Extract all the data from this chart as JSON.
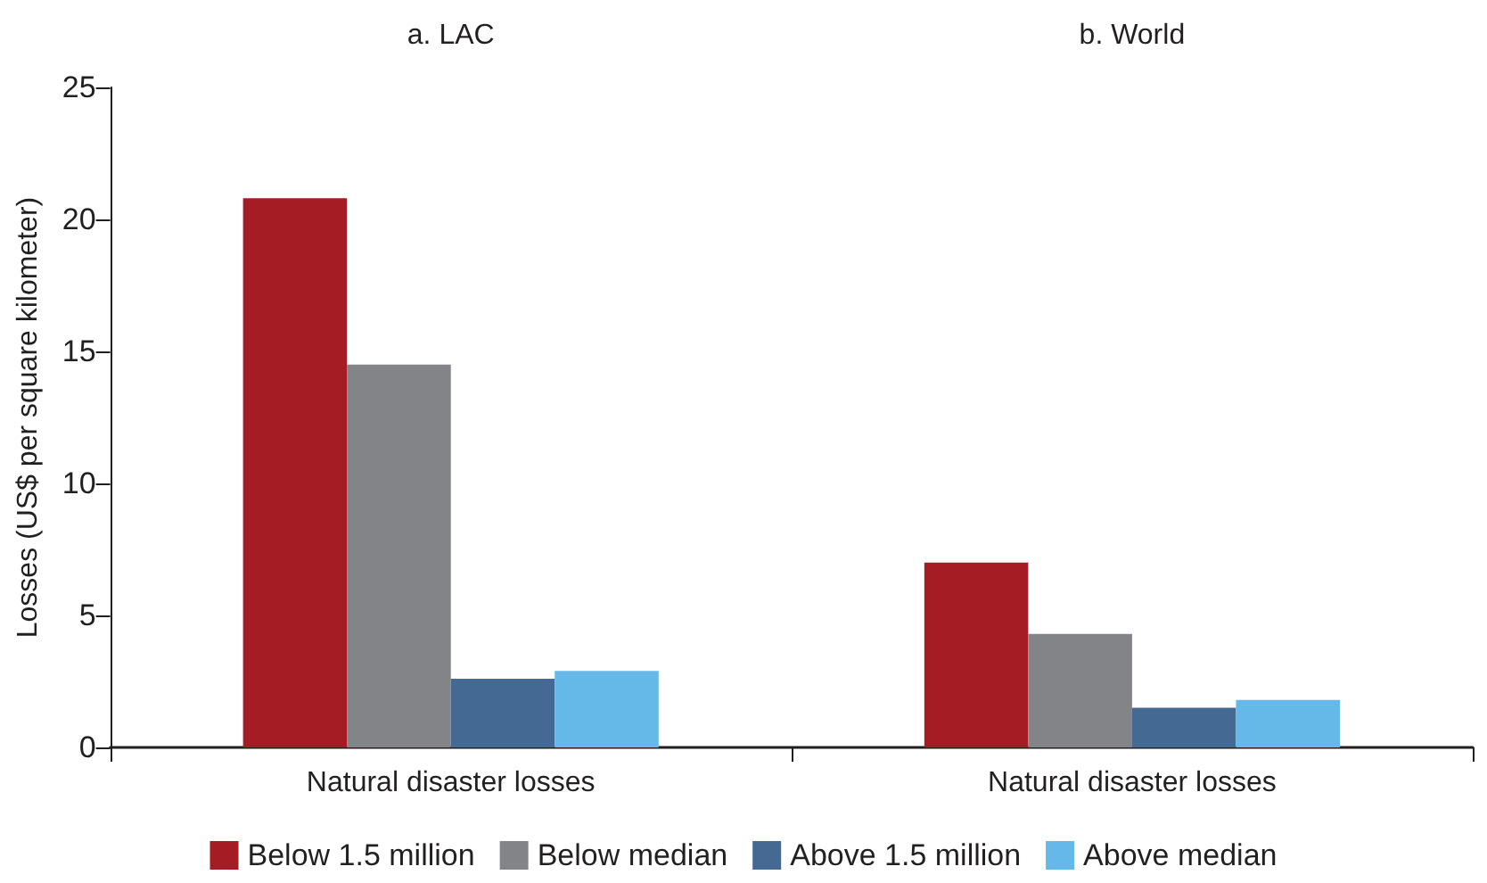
{
  "chart_data": {
    "type": "bar",
    "ylabel": "Losses (US$ per square kilometer)",
    "categories": [
      "Natural disaster losses",
      "Natural disaster losses"
    ],
    "ylim": [
      0,
      25
    ],
    "yticks": [
      0,
      5,
      10,
      15,
      20,
      25
    ],
    "legend": "bottom",
    "annotations": [
      "a. LAC",
      "b. World"
    ],
    "series": [
      {
        "name": "Below 1.5 million",
        "color": "#a51c24",
        "values": [
          20.8,
          7.0
        ]
      },
      {
        "name": "Below median",
        "color": "#838488",
        "values": [
          14.5,
          4.3
        ]
      },
      {
        "name": "Above 1.5 million",
        "color": "#446a94",
        "values": [
          2.6,
          1.5
        ]
      },
      {
        "name": "Above median",
        "color": "#64b9e8",
        "values": [
          2.9,
          1.8
        ]
      }
    ]
  }
}
